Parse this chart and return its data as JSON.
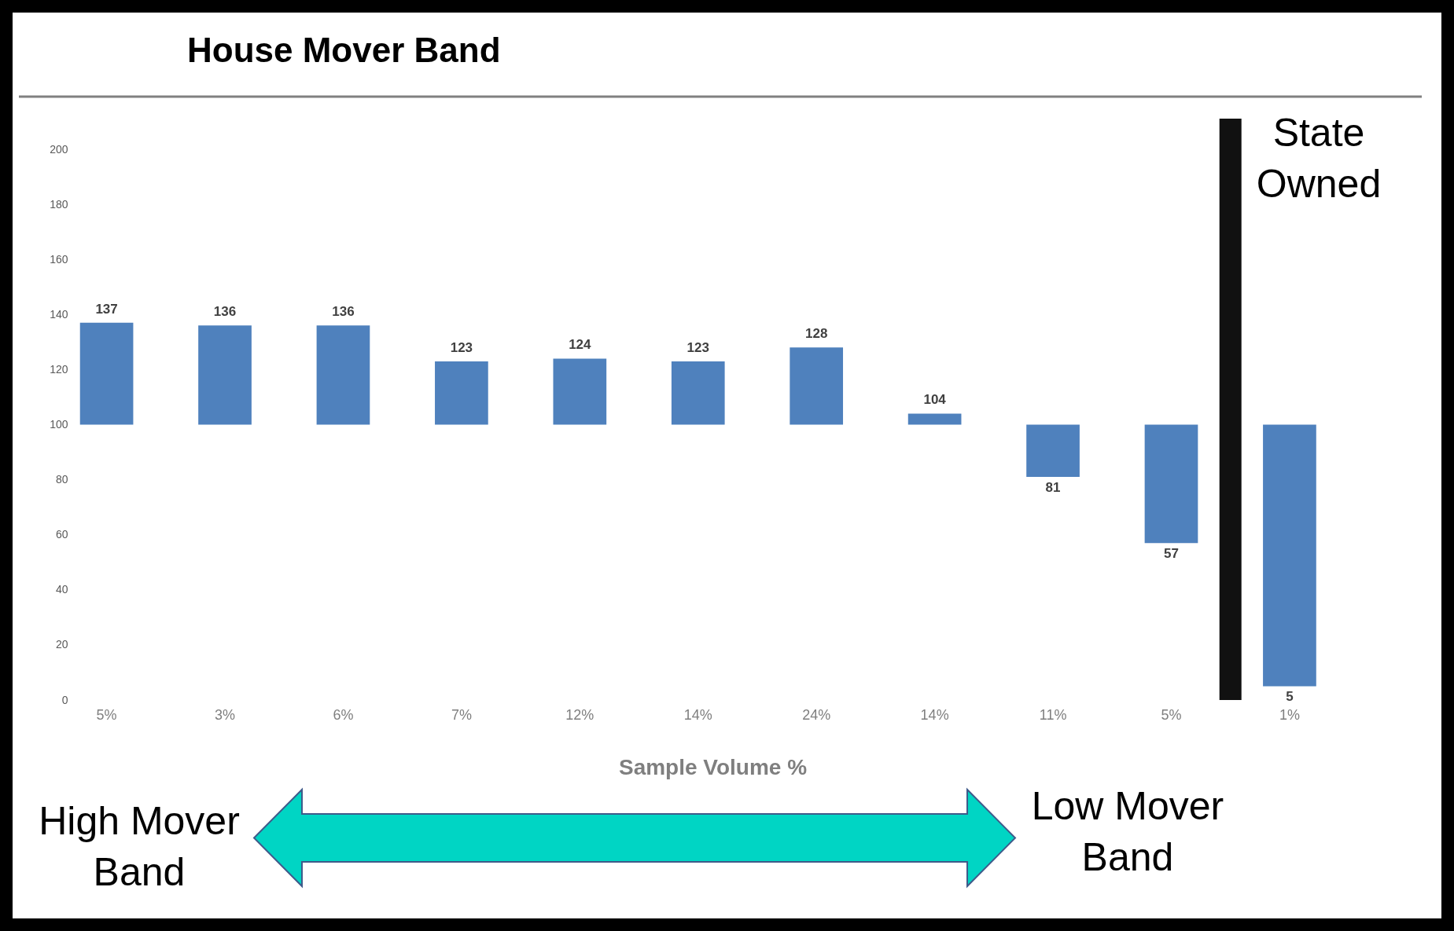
{
  "chart_data": {
    "type": "bar",
    "title": "House Mover Band",
    "xlabel": "Sample Volume %",
    "categories": [
      "5%",
      "3%",
      "6%",
      "7%",
      "12%",
      "14%",
      "24%",
      "14%",
      "11%",
      "5%",
      "1%"
    ],
    "base": [
      100,
      100,
      100,
      100,
      100,
      100,
      100,
      100,
      100,
      100,
      100
    ],
    "values": [
      37,
      36,
      36,
      23,
      24,
      23,
      28,
      4,
      -19,
      -43,
      -95
    ],
    "value_labels": [
      "137",
      "136",
      "136",
      "123",
      "124",
      "123",
      "128",
      "104",
      "81",
      "57",
      "5"
    ],
    "color": "#4f81bd",
    "ylim": [
      0,
      200
    ],
    "yticks": [
      0,
      20,
      40,
      60,
      80,
      100,
      120,
      140,
      160,
      180,
      200
    ],
    "grid": false,
    "legend": false,
    "annotations": [
      "State Owned",
      "High Mover Band",
      "Low Mover Band"
    ]
  }
}
